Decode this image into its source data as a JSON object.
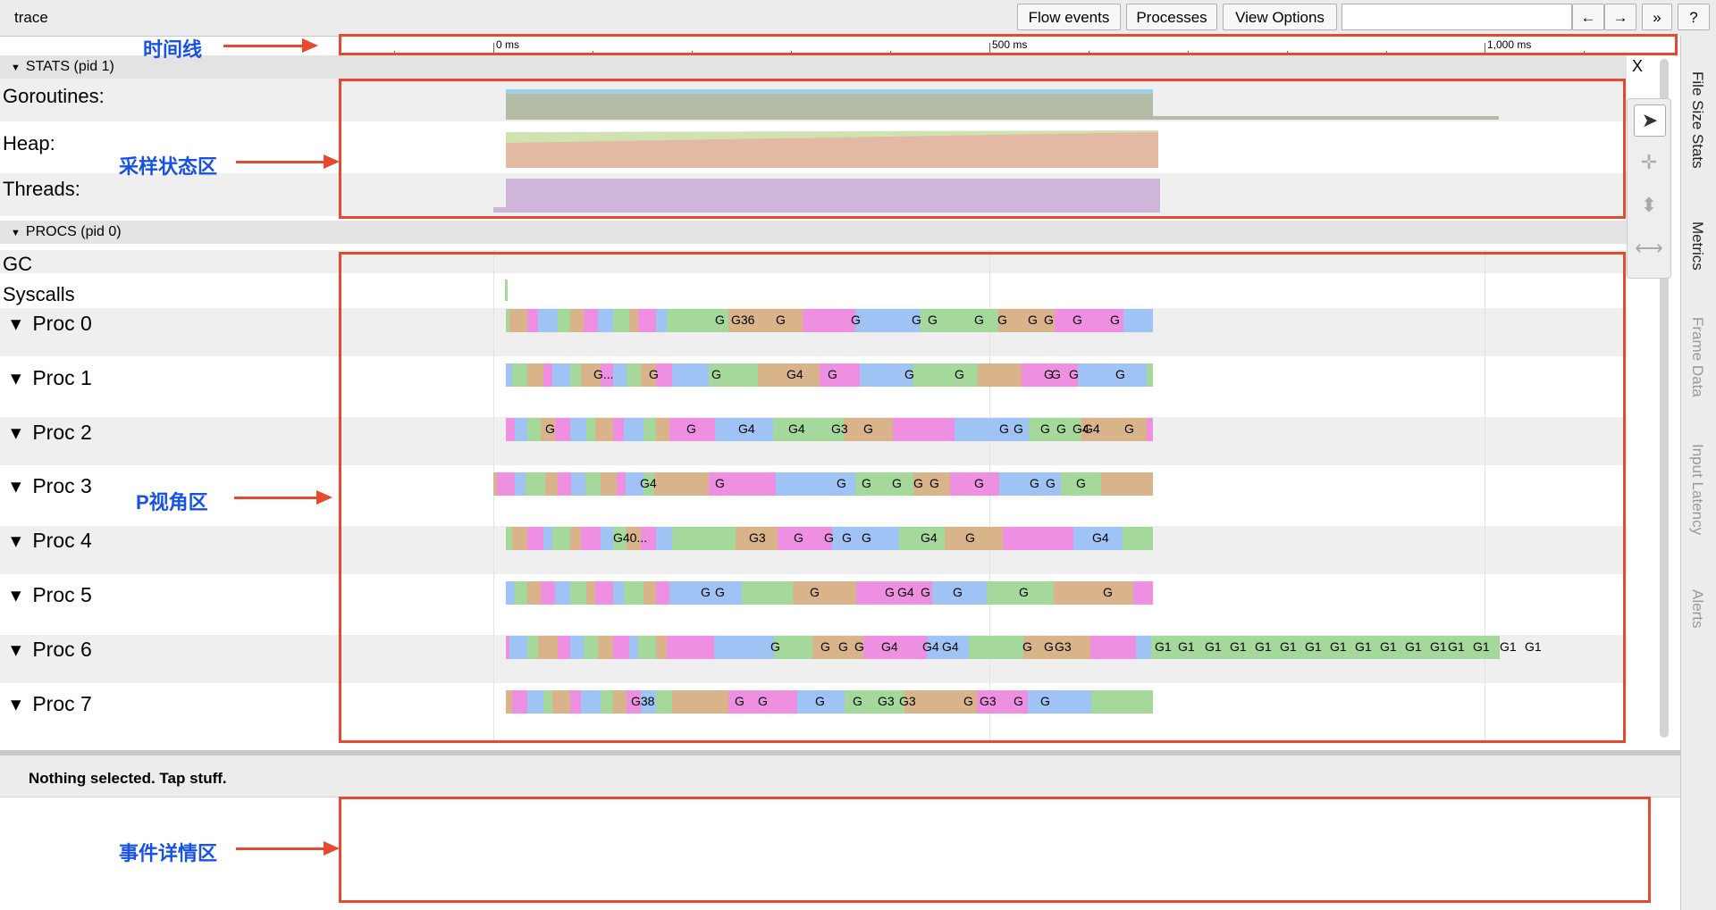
{
  "window": {
    "title": "trace"
  },
  "toolbar": {
    "buttons": [
      "Flow events",
      "Processes",
      "View Options"
    ],
    "search_placeholder": "",
    "nav": {
      "prev": "←",
      "next": "→",
      "more": "»",
      "help": "?"
    }
  },
  "ruler": {
    "labels": [
      "0 ms",
      "500 ms",
      "1,000 ms"
    ]
  },
  "side_tabs": [
    "File Size Stats",
    "Metrics",
    "Frame Data",
    "Input Latency",
    "Alerts"
  ],
  "stats_section": {
    "title": "STATS (pid 1)",
    "close": "X",
    "rows": [
      "Goroutines:",
      "Heap:",
      "Threads:"
    ]
  },
  "procs_section": {
    "title": "PROCS (pid 0)",
    "rows": [
      "GC",
      "Syscalls"
    ],
    "procs": [
      {
        "name": "Proc 0",
        "labels": [
          "G",
          "G36",
          "G",
          "G",
          "G",
          "G",
          "G",
          "G",
          "G",
          "G",
          "G",
          "G"
        ]
      },
      {
        "name": "Proc 1",
        "labels": [
          "G...",
          "G",
          "G",
          "G4",
          "G",
          "G",
          "G",
          "G",
          "G",
          "G",
          "G"
        ]
      },
      {
        "name": "Proc 2",
        "labels": [
          "G",
          "G",
          "G4",
          "G4",
          "G3",
          "G",
          "G",
          "G",
          "G",
          "G",
          "G4",
          "G4",
          "G"
        ]
      },
      {
        "name": "Proc 3",
        "labels": [
          "G4",
          "G",
          "G",
          "G",
          "G",
          "G",
          "G",
          "G",
          "G",
          "G",
          "G"
        ]
      },
      {
        "name": "Proc 4",
        "labels": [
          "G40...",
          "G3",
          "G",
          "G",
          "G",
          "G",
          "G4",
          "G",
          "G4"
        ]
      },
      {
        "name": "Proc 5",
        "labels": [
          "G",
          "G",
          "G",
          "G",
          "G4",
          "G",
          "G",
          "G",
          "G"
        ]
      },
      {
        "name": "Proc 6",
        "labels": [
          "G",
          "G",
          "G",
          "G",
          "G4",
          "G4",
          "G4",
          "G",
          "G",
          "G3",
          "G1",
          "G1",
          "G1",
          "G1",
          "G1",
          "G1",
          "G1",
          "G1",
          "G1",
          "G1",
          "G1",
          "G1",
          "G1",
          "G1",
          "G1",
          "G1"
        ]
      },
      {
        "name": "Proc 7",
        "labels": [
          "G38",
          "G",
          "G",
          "G",
          "G",
          "G3",
          "G3",
          "G",
          "G3",
          "G",
          "G"
        ]
      }
    ]
  },
  "details": {
    "status": "Nothing selected. Tap stuff."
  },
  "annotations": [
    "时间线",
    "采样状态区",
    "P视角区",
    "事件详情区"
  ],
  "colors": {
    "green": "#a5d89b",
    "blue": "#9fc3f4",
    "pink": "#ee8fe2",
    "tan": "#d9b38a",
    "annot_red": "#e64a2e",
    "annot_blue": "#1652e8"
  }
}
